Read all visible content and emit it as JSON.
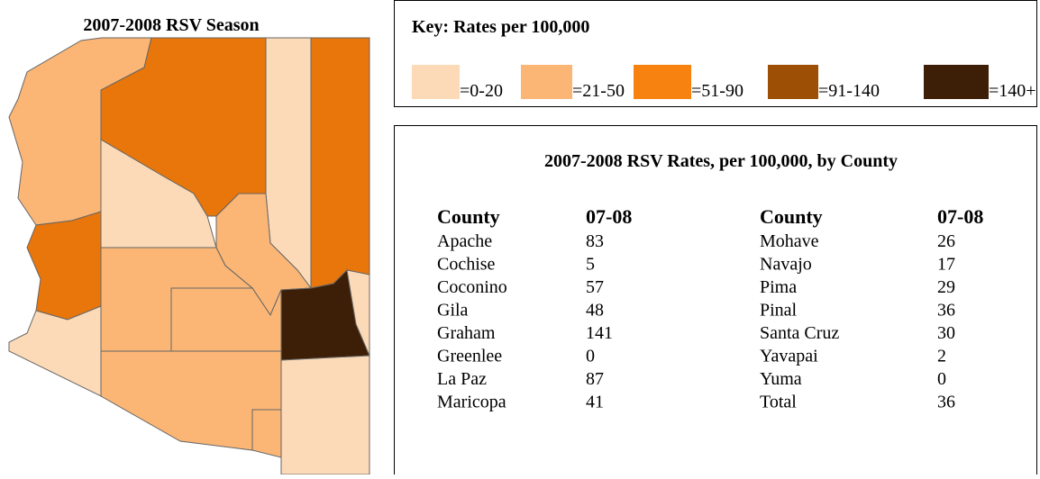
{
  "map": {
    "title": "2007-2008 RSV Season"
  },
  "key": {
    "title": "Key:  Rates per 100,000",
    "items": [
      {
        "label": "=0-20",
        "color": "#fcdab7"
      },
      {
        "label": "=21-50",
        "color": "#fbb676"
      },
      {
        "label": "=51-90",
        "color": "#f7820f"
      },
      {
        "label": "=91-140",
        "color": "#9c4f05"
      },
      {
        "label": "=140+",
        "color": "#3d1e06"
      }
    ]
  },
  "table": {
    "title": "2007-2008 RSV Rates, per 100,000, by County",
    "header": [
      "County",
      "07-08",
      "County",
      "07-08"
    ],
    "rows": [
      [
        "Apache",
        83,
        "Mohave",
        26
      ],
      [
        "Cochise",
        5,
        "Navajo",
        17
      ],
      [
        "Coconino",
        57,
        "Pima",
        29
      ],
      [
        "Gila",
        48,
        "Pinal",
        36
      ],
      [
        "Graham",
        141,
        "Santa Cruz",
        30
      ],
      [
        "Greenlee",
        0,
        "Yavapai",
        2
      ],
      [
        "La Paz",
        87,
        "Yuma",
        0
      ],
      [
        "Maricopa",
        41,
        "Total",
        36
      ]
    ]
  }
}
